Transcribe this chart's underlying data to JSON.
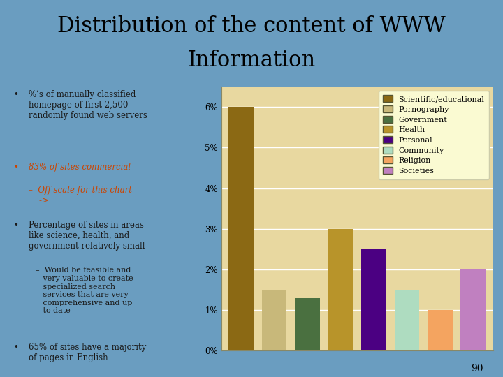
{
  "title_line1": "Distribution of the content of WWW",
  "title_line2": "Information",
  "title_fontsize": 22,
  "categories": [
    "Scientific/educational",
    "Pornography",
    "Government",
    "Health",
    "Personal",
    "Community",
    "Religion",
    "Societies"
  ],
  "values": [
    0.06,
    0.015,
    0.013,
    0.03,
    0.025,
    0.015,
    0.01,
    0.02
  ],
  "bar_colors": [
    "#8B6914",
    "#C8B87A",
    "#4A7040",
    "#B8942A",
    "#4B0082",
    "#AEDCC0",
    "#F4A460",
    "#C080C0"
  ],
  "legend_labels": [
    "Scientific/educational",
    "Pornography",
    "Government",
    "Health",
    "Personal",
    "Community",
    "Religion",
    "Societies"
  ],
  "legend_colors": [
    "#8B6914",
    "#C8B87A",
    "#4A7040",
    "#B8942A",
    "#4B0082",
    "#AEDCC0",
    "#F4A460",
    "#C080C0"
  ],
  "background_slide": "#6A9DC0",
  "background_chart": "#E8D8A0",
  "legend_bg": "#FAFAD2",
  "ylim": [
    0,
    0.065
  ],
  "ytick_vals": [
    0,
    0.01,
    0.02,
    0.03,
    0.04,
    0.05,
    0.06
  ],
  "ytick_labels": [
    "0%",
    "1%",
    "2%",
    "3%",
    "4%",
    "5%",
    "6%"
  ],
  "text_color": "#1A1A1A",
  "orange_text_color": "#CC4400",
  "slide_number": "90"
}
